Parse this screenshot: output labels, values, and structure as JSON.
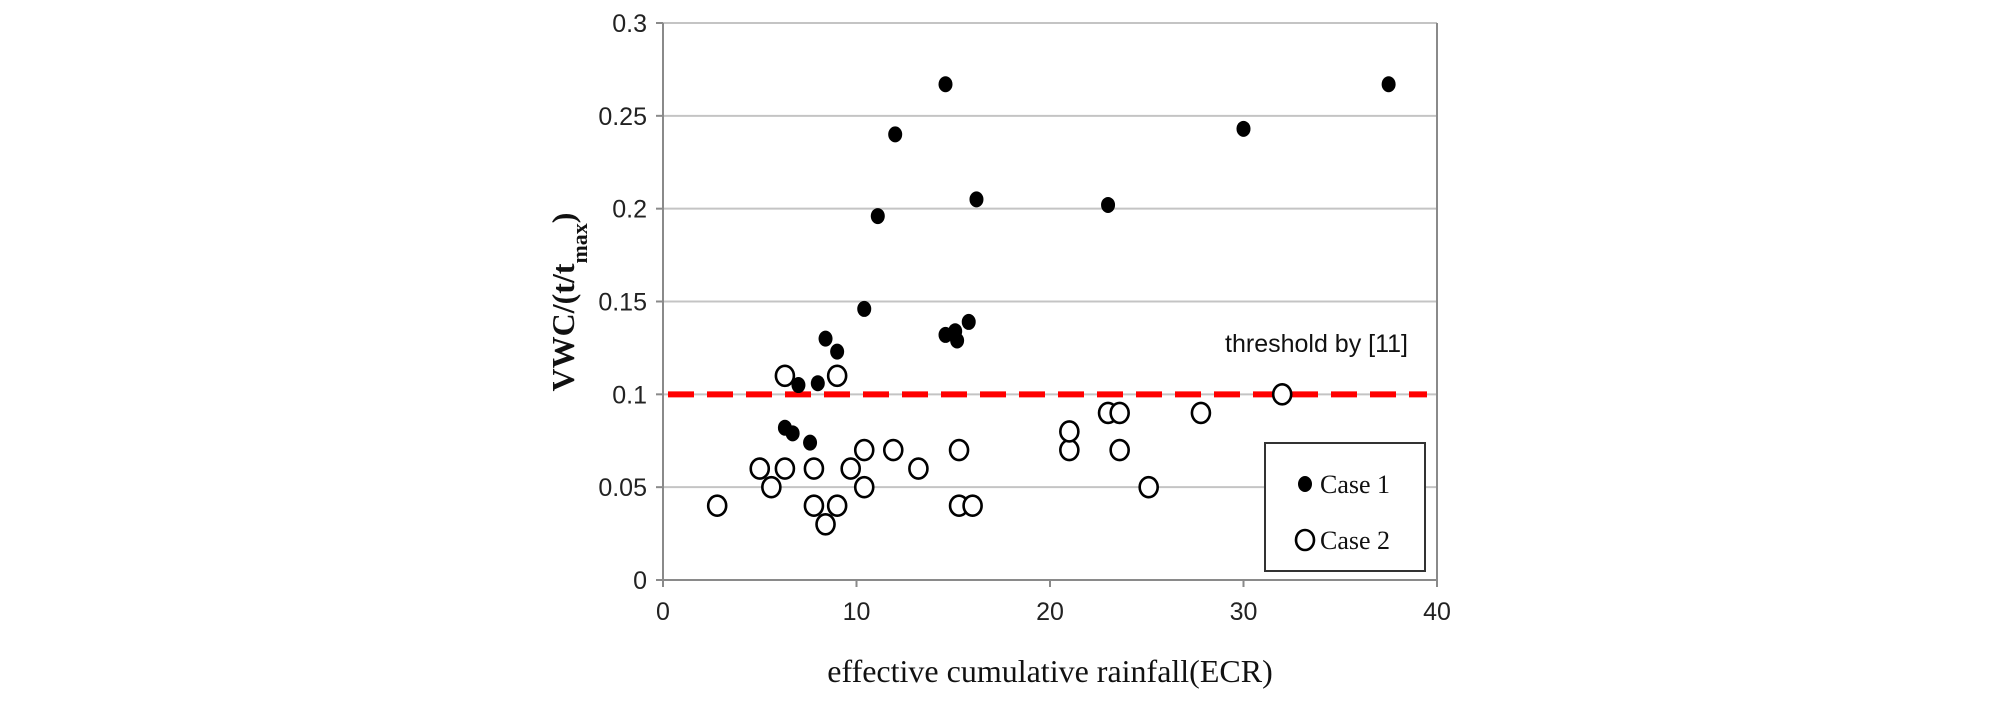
{
  "chart_data": {
    "type": "scatter",
    "xlabel": "effective cumulative rainfall(ECR)",
    "ylabel": "VWC/(t/t",
    "ylabel_sub": "max",
    "ylabel_close": ")",
    "xlim": [
      0,
      40
    ],
    "ylim": [
      0,
      0.3
    ],
    "x_ticks": [
      "0",
      "10",
      "20",
      "30",
      "40"
    ],
    "y_ticks": [
      "0",
      "0.05",
      "0.1",
      "0.15",
      "0.2",
      "0.25",
      "0.3"
    ],
    "grid": "horizontal",
    "threshold": {
      "y": 0.1,
      "label": "threshold by [11]",
      "color": "#ff0000"
    },
    "legend": {
      "placement": "bottom-right"
    },
    "series": [
      {
        "name": "Case 1",
        "marker": "filled-circle",
        "points": [
          [
            6.3,
            0.082
          ],
          [
            6.7,
            0.079
          ],
          [
            7.0,
            0.105
          ],
          [
            7.6,
            0.074
          ],
          [
            8.0,
            0.106
          ],
          [
            8.4,
            0.13
          ],
          [
            9.0,
            0.123
          ],
          [
            10.4,
            0.146
          ],
          [
            11.1,
            0.196
          ],
          [
            12.0,
            0.24
          ],
          [
            14.6,
            0.267
          ],
          [
            14.6,
            0.132
          ],
          [
            15.1,
            0.134
          ],
          [
            15.2,
            0.129
          ],
          [
            15.8,
            0.139
          ],
          [
            16.2,
            0.205
          ],
          [
            23.0,
            0.202
          ],
          [
            30.0,
            0.243
          ],
          [
            37.5,
            0.267
          ]
        ]
      },
      {
        "name": "Case 2",
        "marker": "open-circle",
        "points": [
          [
            2.8,
            0.04
          ],
          [
            5.0,
            0.06
          ],
          [
            5.6,
            0.05
          ],
          [
            6.3,
            0.11
          ],
          [
            6.3,
            0.06
          ],
          [
            7.8,
            0.06
          ],
          [
            7.8,
            0.04
          ],
          [
            8.4,
            0.03
          ],
          [
            9.0,
            0.04
          ],
          [
            9.0,
            0.11
          ],
          [
            9.7,
            0.06
          ],
          [
            10.4,
            0.05
          ],
          [
            10.4,
            0.07
          ],
          [
            11.9,
            0.07
          ],
          [
            13.2,
            0.06
          ],
          [
            15.3,
            0.04
          ],
          [
            15.3,
            0.07
          ],
          [
            16.0,
            0.04
          ],
          [
            21.0,
            0.07
          ],
          [
            21.0,
            0.08
          ],
          [
            23.0,
            0.09
          ],
          [
            23.6,
            0.09
          ],
          [
            23.6,
            0.07
          ],
          [
            25.1,
            0.05
          ],
          [
            27.8,
            0.09
          ],
          [
            32.0,
            0.1
          ]
        ]
      }
    ]
  }
}
